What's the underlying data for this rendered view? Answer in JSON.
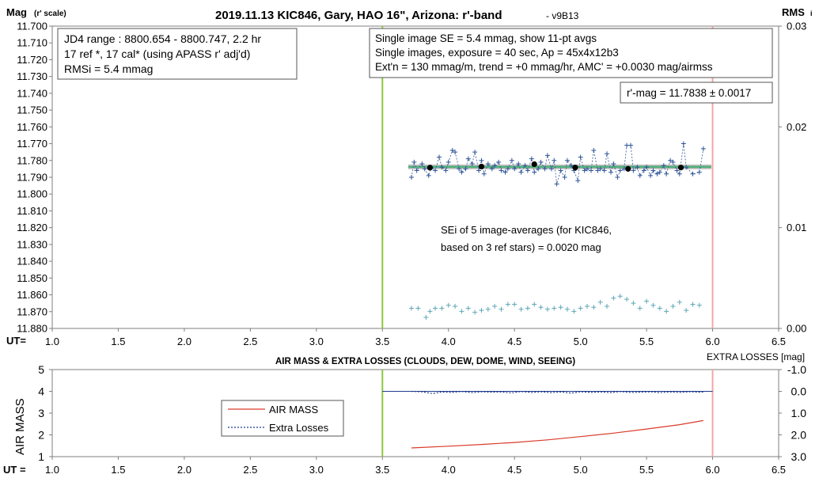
{
  "chart_data": [
    {
      "type": "scatter",
      "title": "2019.11.13 KIC846, Gary, HAO 16\", Arizona: r'-band",
      "version": "- v9B13",
      "ylabel": "Mag",
      "ylabel_sub": "(r' scale)",
      "ylabel_right": "RMS",
      "ylabel_right_sub": "i",
      "xlabel": "UT=",
      "xlim": [
        1.0,
        6.5
      ],
      "ylim": [
        11.7,
        11.88
      ],
      "ylim_right": [
        0.0,
        0.03
      ],
      "y_inverted": true,
      "grid": false,
      "x_ticks": [
        "1.0",
        "1.5",
        "2.0",
        "2.5",
        "3.0",
        "3.5",
        "4.0",
        "4.5",
        "5.0",
        "5.5",
        "6.0",
        "6.5"
      ],
      "y_ticks": [
        "11.700",
        "11.710",
        "11.720",
        "11.730",
        "11.740",
        "11.750",
        "11.760",
        "11.770",
        "11.780",
        "11.790",
        "11.800",
        "11.810",
        "11.820",
        "11.830",
        "11.840",
        "11.850",
        "11.860",
        "11.870",
        "11.880"
      ],
      "y_right_ticks": [
        "0.03",
        "0.02",
        "0.01",
        "0.00"
      ],
      "vlines": [
        {
          "x": 3.5,
          "color": "#8cc63f"
        },
        {
          "x": 6.0,
          "color": "#f4a6a6"
        }
      ],
      "info_left": [
        "JD4 range : 8800.654 - 8800.747,  2.2  hr",
        "17 ref *, 17 cal* (using APASS r' adj'd)",
        "RMSi = 5.4 mmag"
      ],
      "info_right": [
        "Single image SE = 5.4 mmag, show  11-pt avgs",
        "Single images, exposure = 40 sec, Ap = 45x4x12b3",
        "Ext'n = 130 mmag/m, trend =  +0 mmag/hr, AMC' = +0.0030 mag/airmss"
      ],
      "mag_label": "r'-mag = 11.7838 ± 0.0017",
      "sei_label": [
        "SEi of 5 image-averages (for KIC846,",
        "based on 3 ref stars) = 0.0020 mag"
      ],
      "mean_mag": 11.7838,
      "series": [
        {
          "color": "#2f5597",
          "marker": "plus",
          "x": [
            3.72,
            3.74,
            3.76,
            3.8,
            3.82,
            3.85,
            3.87,
            3.9,
            3.93,
            3.95,
            3.98,
            4.0,
            4.03,
            4.05,
            4.08,
            4.1,
            4.13,
            4.15,
            4.18,
            4.2,
            4.23,
            4.25,
            4.27,
            4.3,
            4.33,
            4.35,
            4.38,
            4.4,
            4.43,
            4.45,
            4.48,
            4.5,
            4.53,
            4.55,
            4.58,
            4.6,
            4.63,
            4.65,
            4.68,
            4.7,
            4.73,
            4.75,
            4.78,
            4.8,
            4.82,
            4.85,
            4.88,
            4.9,
            4.93,
            4.95,
            4.98,
            5.0,
            5.03,
            5.05,
            5.08,
            5.1,
            5.13,
            5.15,
            5.18,
            5.2,
            5.23,
            5.25,
            5.28,
            5.3,
            5.33,
            5.35,
            5.38,
            5.4,
            5.43,
            5.45,
            5.48,
            5.5,
            5.53,
            5.55,
            5.58,
            5.6,
            5.63,
            5.65,
            5.68,
            5.7,
            5.73,
            5.75,
            5.78,
            5.8,
            5.85,
            5.9,
            5.93
          ],
          "y": [
            11.79,
            11.781,
            11.786,
            11.782,
            11.785,
            11.789,
            11.784,
            11.786,
            11.778,
            11.784,
            11.786,
            11.781,
            11.774,
            11.775,
            11.785,
            11.787,
            11.785,
            11.779,
            11.782,
            11.775,
            11.786,
            11.78,
            11.788,
            11.782,
            11.785,
            11.783,
            11.781,
            11.786,
            11.787,
            11.785,
            11.78,
            11.785,
            11.782,
            11.787,
            11.783,
            11.786,
            11.779,
            11.787,
            11.785,
            11.781,
            11.785,
            11.777,
            11.785,
            11.78,
            11.794,
            11.786,
            11.79,
            11.78,
            11.783,
            11.786,
            11.792,
            11.778,
            11.786,
            11.785,
            11.786,
            11.774,
            11.786,
            11.785,
            11.786,
            11.776,
            11.787,
            11.782,
            11.79,
            11.786,
            11.785,
            11.771,
            11.771,
            11.786,
            11.784,
            11.789,
            11.786,
            11.784,
            11.789,
            11.786,
            11.788,
            11.787,
            11.783,
            11.788,
            11.78,
            11.781,
            11.786,
            11.788,
            11.77,
            11.784,
            11.788,
            11.787,
            11.773
          ]
        },
        {
          "color": "#000000",
          "marker": "dot",
          "x": [
            3.86,
            4.25,
            4.65,
            4.96,
            5.36,
            5.76
          ],
          "y": [
            11.7843,
            11.7836,
            11.7822,
            11.7842,
            11.785,
            11.7842
          ]
        },
        {
          "color": "#5fa6b8",
          "marker": "plus",
          "axis": "right",
          "x": [
            3.72,
            3.77,
            3.83,
            3.86,
            3.9,
            3.95,
            4.0,
            4.05,
            4.1,
            4.15,
            4.2,
            4.25,
            4.3,
            4.35,
            4.4,
            4.45,
            4.5,
            4.55,
            4.6,
            4.65,
            4.7,
            4.75,
            4.8,
            4.85,
            4.9,
            4.95,
            5.0,
            5.05,
            5.1,
            5.15,
            5.2,
            5.25,
            5.3,
            5.35,
            5.4,
            5.45,
            5.5,
            5.55,
            5.6,
            5.65,
            5.7,
            5.75,
            5.8,
            5.85,
            5.9
          ],
          "y": [
            0.002,
            0.002,
            0.0011,
            0.0017,
            0.002,
            0.002,
            0.0023,
            0.0022,
            0.0017,
            0.002,
            0.0016,
            0.0018,
            0.0019,
            0.0022,
            0.0019,
            0.0024,
            0.0024,
            0.0019,
            0.002,
            0.0024,
            0.0021,
            0.0019,
            0.002,
            0.0021,
            0.0019,
            0.0017,
            0.002,
            0.0022,
            0.0021,
            0.0026,
            0.0022,
            0.003,
            0.0032,
            0.0029,
            0.0025,
            0.002,
            0.0027,
            0.0023,
            0.002,
            0.0017,
            0.0022,
            0.0026,
            0.0018,
            0.0024,
            0.0023
          ]
        }
      ]
    },
    {
      "type": "line",
      "title": "AIR MASS & EXTRA LOSSES (CLOUDS, DEW, DOME, WIND, SEEING)",
      "ylabel": "AIR MASS",
      "ylabel_right": "EXTRA LOSSES [mag]",
      "xlabel": "UT =",
      "xlim": [
        1.0,
        6.5
      ],
      "ylim": [
        1,
        5
      ],
      "ylim_right": [
        -1.0,
        3.0
      ],
      "x_ticks": [
        "1.0",
        "1.5",
        "2.0",
        "2.5",
        "3.0",
        "3.5",
        "4.0",
        "4.5",
        "5.0",
        "5.5",
        "6.0",
        "6.5"
      ],
      "y_ticks": [
        "1",
        "2",
        "3",
        "4",
        "5"
      ],
      "y_right_ticks": [
        "-1.0",
        "0.0",
        "1.0",
        "2.0",
        "3.0"
      ],
      "vlines": [
        {
          "x": 3.5,
          "color": "#8cc63f"
        },
        {
          "x": 6.0,
          "color": "#f4a6a6"
        }
      ],
      "legend": [
        "AIR MASS",
        "Extra Losses"
      ],
      "legend_position": "middle-left",
      "series": [
        {
          "name": "AIR MASS",
          "color": "#d93b2b",
          "x": [
            3.72,
            4.0,
            4.25,
            4.5,
            4.75,
            5.0,
            5.25,
            5.5,
            5.75,
            5.93
          ],
          "y": [
            1.4,
            1.48,
            1.56,
            1.65,
            1.77,
            1.92,
            2.08,
            2.27,
            2.47,
            2.66
          ]
        },
        {
          "name": "Extra Losses",
          "color": "#1f3b8c",
          "axis": "right",
          "x": [
            3.72,
            3.8,
            3.88,
            3.95,
            4.02,
            4.1,
            4.18,
            4.25,
            4.33,
            4.4,
            4.48,
            4.55,
            4.63,
            4.7,
            4.78,
            4.85,
            4.93,
            5.0,
            5.08,
            5.15,
            5.23,
            5.3,
            5.38,
            5.45,
            5.53,
            5.6,
            5.68,
            5.75,
            5.83,
            5.9,
            5.93
          ],
          "y": [
            0.0,
            0.02,
            0.1,
            0.03,
            0.05,
            0.01,
            0.06,
            0.02,
            0.04,
            0.03,
            0.07,
            0.01,
            0.05,
            0.02,
            0.06,
            0.03,
            0.08,
            0.02,
            0.05,
            0.03,
            0.06,
            0.01,
            0.05,
            0.04,
            0.02,
            0.06,
            0.03,
            0.05,
            0.02,
            0.04,
            0.03
          ]
        }
      ]
    }
  ]
}
